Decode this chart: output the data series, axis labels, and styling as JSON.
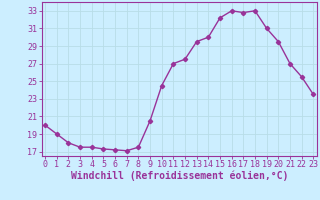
{
  "x": [
    0,
    1,
    2,
    3,
    4,
    5,
    6,
    7,
    8,
    9,
    10,
    11,
    12,
    13,
    14,
    15,
    16,
    17,
    18,
    19,
    20,
    21,
    22,
    23
  ],
  "y": [
    20,
    19,
    18,
    17.5,
    17.5,
    17.3,
    17.2,
    17.1,
    17.5,
    20.5,
    24.5,
    27,
    27.5,
    29.5,
    30,
    32.2,
    33,
    32.8,
    33,
    31,
    29.5,
    27,
    25.5,
    23.5
  ],
  "line_color": "#993399",
  "marker": "D",
  "marker_size": 2.2,
  "background_color": "#cceeff",
  "grid_color": "#aaddee",
  "xlabel": "Windchill (Refroidissement éolien,°C)",
  "xlabel_color": "#993399",
  "ylim": [
    16.5,
    34
  ],
  "yticks": [
    17,
    19,
    21,
    23,
    25,
    27,
    29,
    31,
    33
  ],
  "xticks": [
    0,
    1,
    2,
    3,
    4,
    5,
    6,
    7,
    8,
    9,
    10,
    11,
    12,
    13,
    14,
    15,
    16,
    17,
    18,
    19,
    20,
    21,
    22,
    23
  ],
  "xlim": [
    -0.3,
    23.3
  ],
  "tick_color": "#993399",
  "tick_fontsize": 6,
  "xlabel_fontsize": 7,
  "spine_color": "#993399"
}
